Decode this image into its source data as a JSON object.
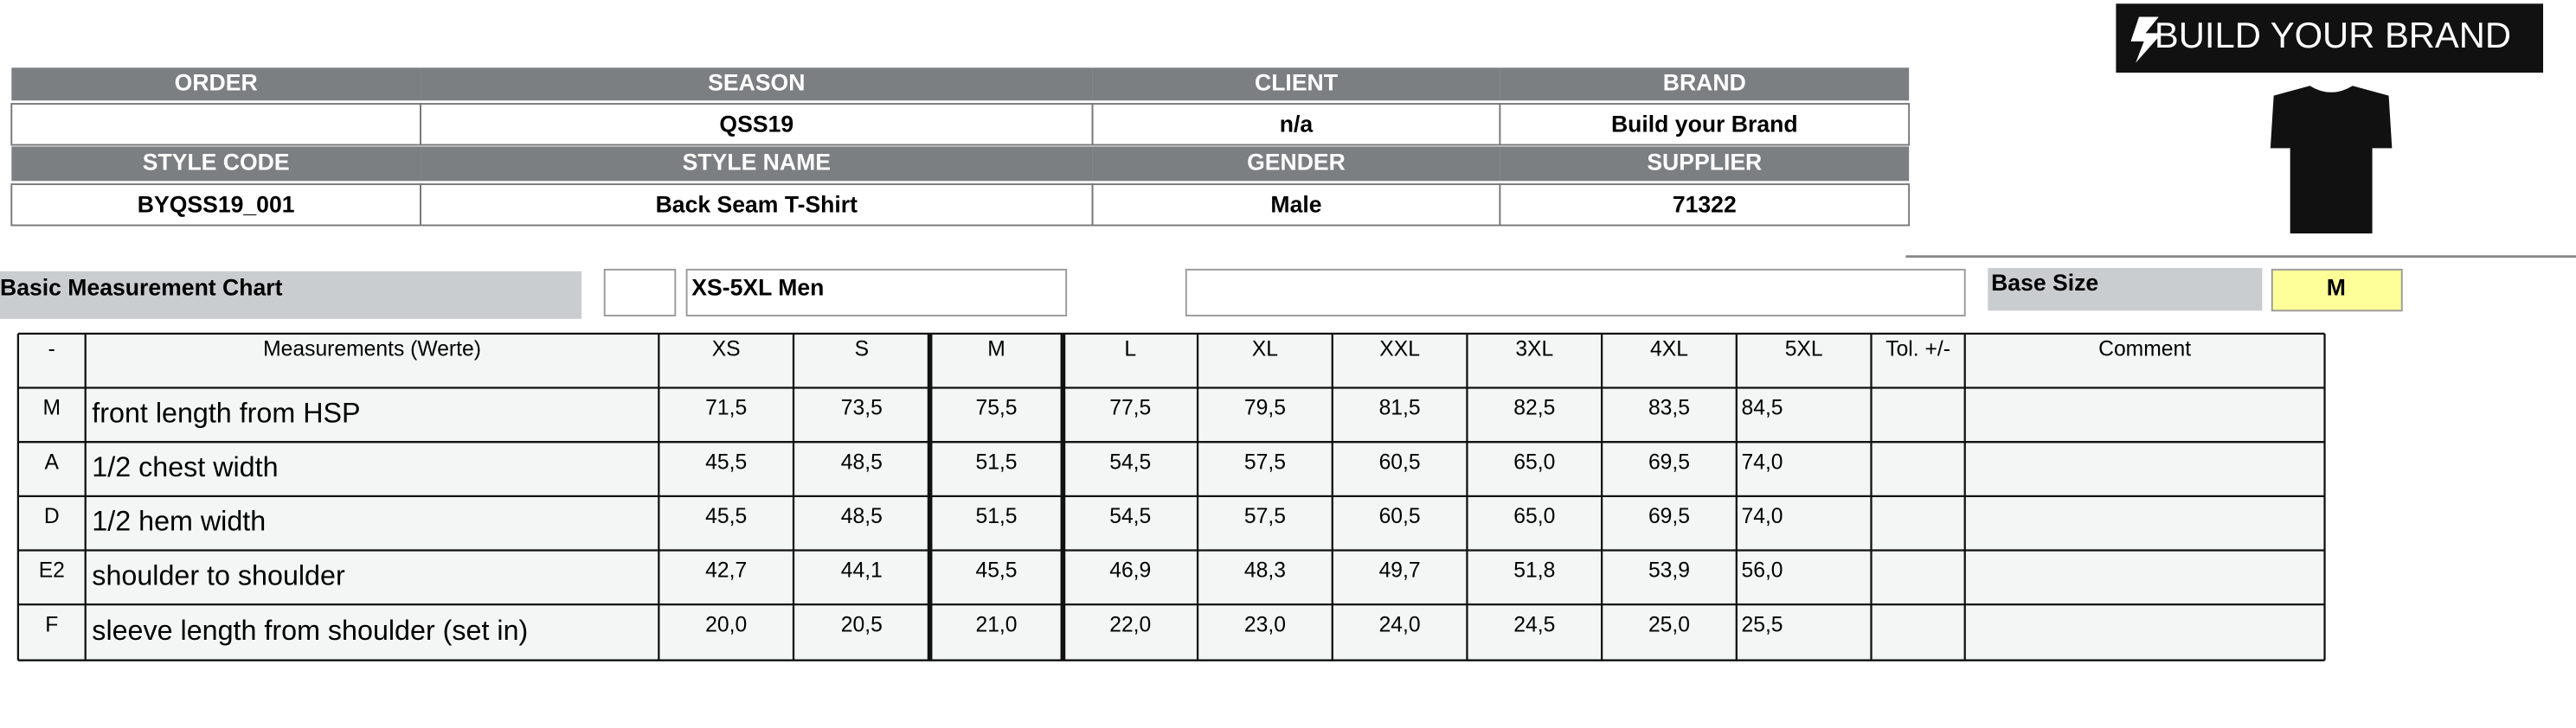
{
  "logo": "BUILD YOUR BRAND",
  "header": {
    "fields": [
      {
        "label": "ORDER"
      },
      {
        "label": "SEASON",
        "value": "QSS19"
      },
      {
        "label": "CLIENT",
        "value": "n/a"
      },
      {
        "label": "BRAND",
        "value": "Build your Brand"
      },
      {
        "label": "STYLE CODE",
        "value": "BYQSS19_001"
      },
      {
        "label": "STYLE NAME",
        "value": "Back Seam T-Shirt"
      },
      {
        "label": "GENDER",
        "value": "Male"
      },
      {
        "label": "SUPPLIER",
        "value": "71322"
      }
    ]
  },
  "chart": {
    "title": "Basic Measurement Chart",
    "size_range": "XS-5XL Men",
    "base_size_label": "Base Size",
    "base_size": "M"
  },
  "table": {
    "columns": [
      "-",
      "Measurements (Werte)",
      "XS",
      "S",
      "M",
      "L",
      "XL",
      "XXL",
      "3XL",
      "4XL",
      "5XL",
      "Tol. +/-",
      "Comment"
    ],
    "rows": [
      {
        "code": "M",
        "name": "front length from HSP",
        "values": [
          "71,5",
          "73,5",
          "75,5",
          "77,5",
          "79,5",
          "81,5",
          "82,5",
          "83,5",
          "84,5"
        ]
      },
      {
        "code": "A",
        "name": "1/2 chest width",
        "values": [
          "45,5",
          "48,5",
          "51,5",
          "54,5",
          "57,5",
          "60,5",
          "65,0",
          "69,5",
          "74,0"
        ]
      },
      {
        "code": "D",
        "name": "1/2 hem width",
        "values": [
          "45,5",
          "48,5",
          "51,5",
          "54,5",
          "57,5",
          "60,5",
          "65,0",
          "69,5",
          "74,0"
        ]
      },
      {
        "code": "E2",
        "name": "shoulder to shoulder",
        "values": [
          "42,7",
          "44,1",
          "45,5",
          "46,9",
          "48,3",
          "49,7",
          "51,8",
          "53,9",
          "56,0"
        ]
      },
      {
        "code": "F",
        "name": "sleeve length from shoulder (set in)",
        "values": [
          "20,0",
          "20,5",
          "21,0",
          "22,0",
          "23,0",
          "24,0",
          "24,5",
          "25,0",
          "25,5"
        ]
      }
    ]
  }
}
